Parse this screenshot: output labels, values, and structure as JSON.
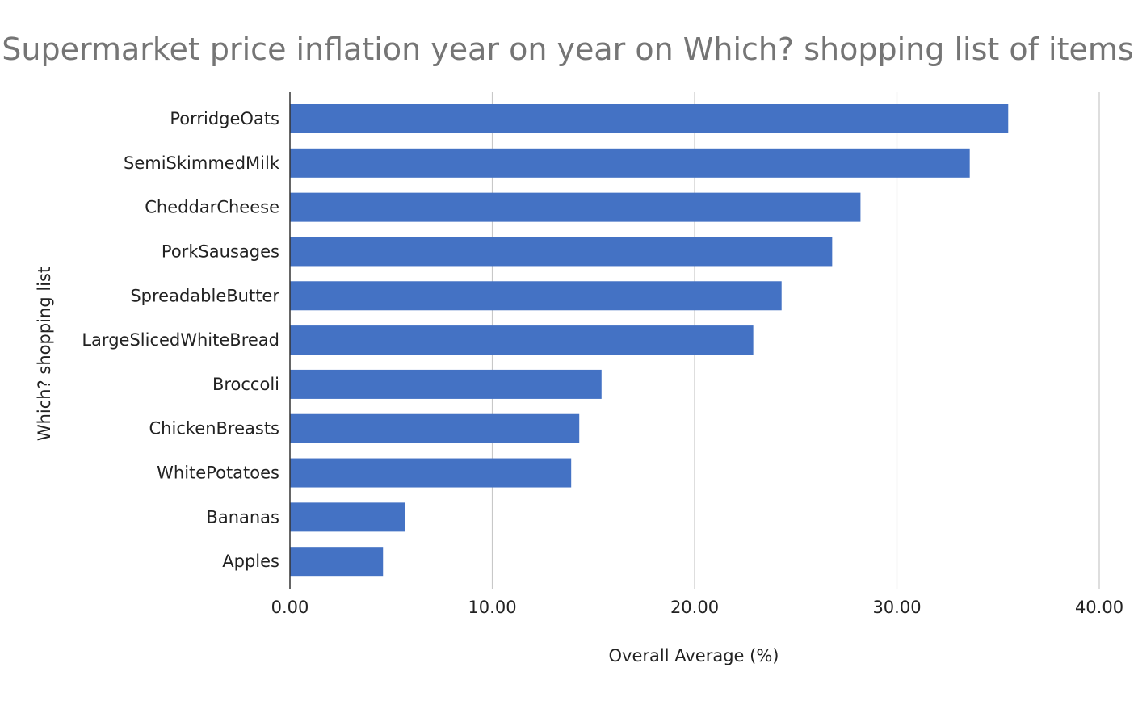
{
  "chart_data": {
    "type": "bar",
    "orientation": "horizontal",
    "title": "Supermarket price inflation year on year on Which? shopping list of items",
    "xlabel": "Overall Average (%)",
    "ylabel": "Which? shopping list",
    "xlim": [
      0,
      40
    ],
    "xticks": [
      0,
      10,
      20,
      30,
      40
    ],
    "xtick_labels": [
      "0.00",
      "10.00",
      "20.00",
      "30.00",
      "40.00"
    ],
    "categories": [
      "PorridgeOats",
      "SemiSkimmedMilk",
      "CheddarCheese",
      "PorkSausages",
      "SpreadableButter",
      "LargeSlicedWhiteBread",
      "Broccoli",
      "ChickenBreasts",
      "WhitePotatoes",
      "Bananas",
      "Apples"
    ],
    "values": [
      35.5,
      33.6,
      28.2,
      26.8,
      24.3,
      22.9,
      15.4,
      14.3,
      13.9,
      5.7,
      4.6
    ],
    "grid": true,
    "legend": "none",
    "bar_color": "#4472c4"
  }
}
